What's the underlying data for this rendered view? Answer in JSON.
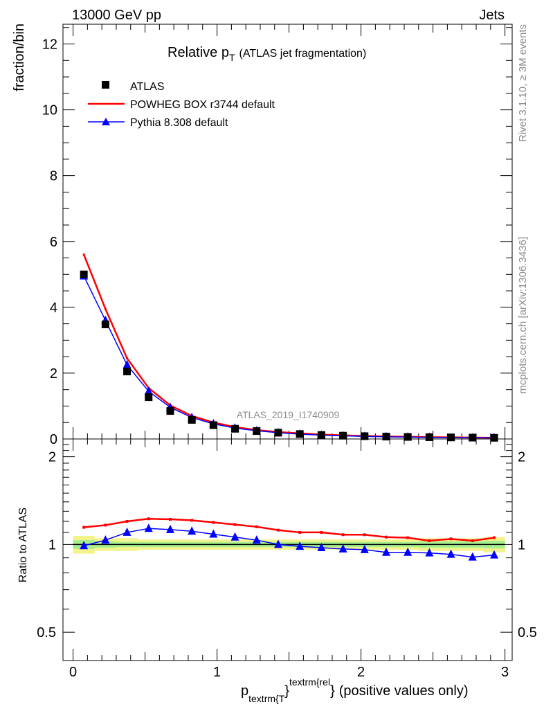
{
  "header": {
    "left": "13000 GeV pp",
    "right": "Jets"
  },
  "side_labels": {
    "rivet": "Rivet 3.1.10, ≥ 3M events",
    "mcplots": "mcplots.cern.ch [arXiv:1306.3436]"
  },
  "chart_data": [
    {
      "type": "line",
      "panel": "main",
      "title_main": "Relative p",
      "title_sub": "T",
      "title_rest": "(ATLAS jet fragmentation)",
      "ylabel": "fraction/bin",
      "watermark": "ATLAS_2019_I1740909",
      "xlim": [
        -0.07,
        3.05
      ],
      "ylim": [
        0,
        12.6
      ],
      "yticks": [
        0,
        2,
        4,
        6,
        8,
        10,
        12
      ],
      "x": [
        0.075,
        0.225,
        0.375,
        0.525,
        0.675,
        0.825,
        0.975,
        1.125,
        1.275,
        1.425,
        1.575,
        1.725,
        1.875,
        2.025,
        2.175,
        2.325,
        2.475,
        2.625,
        2.775,
        2.925
      ],
      "series": [
        {
          "name": "ATLAS",
          "color": "#000000",
          "marker": "square",
          "values": [
            5.0,
            3.48,
            2.05,
            1.27,
            0.85,
            0.58,
            0.42,
            0.31,
            0.24,
            0.19,
            0.15,
            0.12,
            0.1,
            0.085,
            0.072,
            0.062,
            0.054,
            0.047,
            0.041,
            0.036
          ]
        },
        {
          "name": "POWHEG BOX r3744 default",
          "color": "#ff0000",
          "marker": "none",
          "values": [
            5.6,
            3.95,
            2.45,
            1.55,
            1.02,
            0.7,
            0.5,
            0.36,
            0.27,
            0.21,
            0.17,
            0.135,
            0.11,
            0.092,
            0.077,
            0.066,
            0.056,
            0.049,
            0.042,
            0.038
          ]
        },
        {
          "name": "Pythia 8.308 default",
          "color": "#0000ff",
          "marker": "triangle",
          "values": [
            4.95,
            3.6,
            2.25,
            1.45,
            0.96,
            0.65,
            0.46,
            0.33,
            0.25,
            0.19,
            0.148,
            0.115,
            0.095,
            0.08,
            0.066,
            0.057,
            0.049,
            0.043,
            0.036,
            0.033
          ]
        }
      ]
    },
    {
      "type": "line",
      "panel": "ratio",
      "ylabel": "Ratio to ATLAS",
      "xlabel": "p",
      "xlabel_sub": "textrm{T",
      "xlabel_sup": "textrm{rel",
      "xlabel_brace": "}",
      "xlabel_rest": "(positive values only)",
      "xlim": [
        -0.07,
        3.05
      ],
      "ylim": [
        0.4,
        2.3
      ],
      "ytick_labels": [
        "0.5",
        "1",
        "2"
      ],
      "yticks": [
        0.5,
        1,
        2
      ],
      "xtick_labels": [
        "0",
        "1",
        "2",
        "3"
      ],
      "xticks": [
        0,
        1,
        2,
        3
      ],
      "x": [
        0.075,
        0.225,
        0.375,
        0.525,
        0.675,
        0.825,
        0.975,
        1.125,
        1.275,
        1.425,
        1.575,
        1.725,
        1.875,
        2.025,
        2.175,
        2.325,
        2.475,
        2.625,
        2.775,
        2.925
      ],
      "band_outer": [
        0.07,
        0.05,
        0.05,
        0.04,
        0.04,
        0.04,
        0.04,
        0.04,
        0.04,
        0.04,
        0.04,
        0.04,
        0.04,
        0.04,
        0.04,
        0.04,
        0.05,
        0.05,
        0.05,
        0.06
      ],
      "band_inner": [
        0.035,
        0.025,
        0.02,
        0.02,
        0.02,
        0.02,
        0.02,
        0.02,
        0.02,
        0.02,
        0.02,
        0.02,
        0.02,
        0.02,
        0.02,
        0.02,
        0.025,
        0.025,
        0.025,
        0.03
      ],
      "series": [
        {
          "name": "POWHEG BOX r3744 default",
          "color": "#ff0000",
          "marker": "none",
          "values": [
            1.145,
            1.165,
            1.2,
            1.225,
            1.22,
            1.21,
            1.19,
            1.17,
            1.15,
            1.12,
            1.1,
            1.1,
            1.08,
            1.08,
            1.06,
            1.055,
            1.03,
            1.045,
            1.03,
            1.055
          ]
        },
        {
          "name": "Pythia 8.308 default",
          "color": "#0000ff",
          "marker": "triangle",
          "values": [
            0.99,
            1.035,
            1.1,
            1.135,
            1.125,
            1.11,
            1.085,
            1.06,
            1.035,
            1.0,
            0.985,
            0.975,
            0.965,
            0.96,
            0.94,
            0.94,
            0.935,
            0.925,
            0.905,
            0.92
          ]
        }
      ]
    }
  ]
}
